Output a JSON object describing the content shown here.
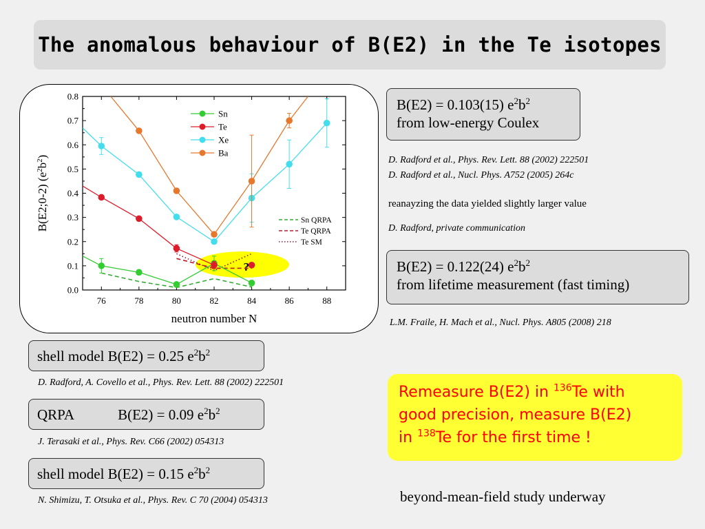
{
  "title": "The anomalous behaviour of B(E2) in the Te isotopes",
  "colors": {
    "Sn": "#33cc33",
    "Te": "#dd1c2b",
    "Xe": "#44ddee",
    "Ba": "#e6782e",
    "question_ellipse": "#ffff00",
    "question_mark": "#cc0000",
    "red_text": "#ff0000"
  },
  "chart_data": {
    "type": "line",
    "xlabel": "neutron number N",
    "ylabel": "B(E2;0-2) (e2b2)",
    "ylabel_parts": [
      "B(E2;0-2) (e",
      "2",
      "b",
      "2",
      ")"
    ],
    "xlim": [
      75,
      89
    ],
    "ylim": [
      0.0,
      0.8
    ],
    "xticks": [
      "76",
      "78",
      "80",
      "82",
      "84",
      "86",
      "88"
    ],
    "yticks": [
      "0.0",
      "0.1",
      "0.2",
      "0.3",
      "0.4",
      "0.5",
      "0.6",
      "0.7",
      "0.8"
    ],
    "legend_position": "upper-middle",
    "series": [
      {
        "name": "Sn",
        "color": "#33cc33",
        "style": "marker-line",
        "x": [
          76,
          78,
          80,
          82,
          84
        ],
        "y": [
          0.1,
          0.073,
          0.023,
          0.11,
          0.029
        ],
        "yerr": [
          0.03,
          0.01,
          0.008,
          0.03,
          0.005
        ],
        "line_x": [
          75,
          76,
          78,
          80,
          82,
          84
        ],
        "line_y": [
          0.14,
          0.1,
          0.073,
          0.023,
          0.11,
          0.029
        ]
      },
      {
        "name": "Te",
        "color": "#dd1c2b",
        "style": "marker-line",
        "x": [
          76,
          78,
          80,
          82,
          84
        ],
        "y": [
          0.383,
          0.295,
          0.172,
          0.103,
          0.103
        ],
        "yerr": [
          0.0,
          0.0,
          0.015,
          0.015,
          0.0
        ],
        "line_x": [
          75,
          76,
          78,
          80,
          82
        ],
        "line_y": [
          0.43,
          0.383,
          0.295,
          0.172,
          0.103
        ]
      },
      {
        "name": "Xe",
        "color": "#44ddee",
        "style": "marker-line",
        "x": [
          76,
          78,
          80,
          82,
          84,
          86,
          88
        ],
        "y": [
          0.595,
          0.477,
          0.302,
          0.2,
          0.38,
          0.52,
          0.69
        ],
        "yerr": [
          0.035,
          0.01,
          0.005,
          0.005,
          0.1,
          0.1,
          0.1
        ],
        "line_x": [
          75,
          76,
          78,
          80,
          82,
          84,
          86,
          88
        ],
        "line_y": [
          0.67,
          0.595,
          0.477,
          0.302,
          0.2,
          0.38,
          0.52,
          0.69
        ]
      },
      {
        "name": "Ba",
        "color": "#e6782e",
        "style": "marker-line",
        "x": [
          78,
          80,
          82,
          84,
          86
        ],
        "y": [
          0.658,
          0.41,
          0.23,
          0.45,
          0.7
        ],
        "yerr": [
          0.0,
          0.0,
          0.0,
          0.19,
          0.03
        ],
        "line_x": [
          76.5,
          78,
          80,
          82,
          84,
          86,
          87.0
        ],
        "line_y": [
          0.8,
          0.658,
          0.41,
          0.23,
          0.45,
          0.7,
          0.8
        ]
      },
      {
        "name": "Sn QRPA",
        "color": "#33aa33",
        "style": "dashed",
        "x": [
          76,
          78,
          80,
          82,
          84
        ],
        "y": [
          0.07,
          0.035,
          0.01,
          0.047,
          0.012
        ]
      },
      {
        "name": "Te QRPA",
        "color": "#bb1c2b",
        "style": "dashed",
        "x": [
          80,
          82,
          84
        ],
        "y": [
          0.13,
          0.09,
          0.09
        ]
      },
      {
        "name": "Te SM",
        "color": "#8b1a3a",
        "style": "dotted",
        "x": [
          80,
          82,
          84
        ],
        "y": [
          0.15,
          0.08,
          0.15
        ]
      }
    ],
    "annotation": {
      "text": "?",
      "x": 83.5,
      "y": 0.105
    }
  },
  "coulex_box": {
    "line1_a": "B(E2) = 0.103(15) e",
    "sup1": "2",
    "line1_b": "b",
    "sup2": "2",
    "line2": "from low-energy Coulex"
  },
  "refs_radford": [
    "D. Radford et al., Phys. Rev. Lett. 88 (2002) 222501",
    "D. Radford et al., Nucl. Phys. A752 (2005) 264c"
  ],
  "reanalysis_text": "reanayzing the data yielded slightly larger value",
  "ref_private": "D. Radford, private communication",
  "lifetime_box": {
    "line1_a": "B(E2) = 0.122(24) e",
    "sup1": "2",
    "line1_b": "b",
    "sup2": "2",
    "line2": "from lifetime measurement (fast timing)"
  },
  "ref_fraile": "L.M. Fraile, H. Mach et al., Nucl. Phys. A805 (2008) 218",
  "shell_model_1": {
    "label": "shell model  B(E2) = 0.25 e",
    "sup1": "2",
    "mid": "b",
    "sup2": "2"
  },
  "ref_sm1": "D. Radford, A. Covello et al., Phys. Rev. Lett. 88 (2002) 222501",
  "qrpa": {
    "label": "QRPA",
    "value": "B(E2) = 0.09 e",
    "sup1": "2",
    "mid": "b",
    "sup2": "2"
  },
  "ref_qrpa": "J. Terasaki et al., Phys. Rev. C66 (2002) 054313",
  "shell_model_2": {
    "label": "shell model  B(E2) = 0.15 e",
    "sup1": "2",
    "mid": "b",
    "sup2": "2"
  },
  "ref_sm2": "N. Shimizu, T. Otsuka et al., Phys. Rev. C 70 (2004) 054313",
  "remeasure": {
    "part1": "Remeasure B(E2) in ",
    "sup1": "136",
    "part2": "Te with",
    "line2": "good precision, measure B(E2)",
    "part3": "in ",
    "sup2": "138",
    "part4": "Te for the first time !"
  },
  "underway": "beyond-mean-field study underway"
}
